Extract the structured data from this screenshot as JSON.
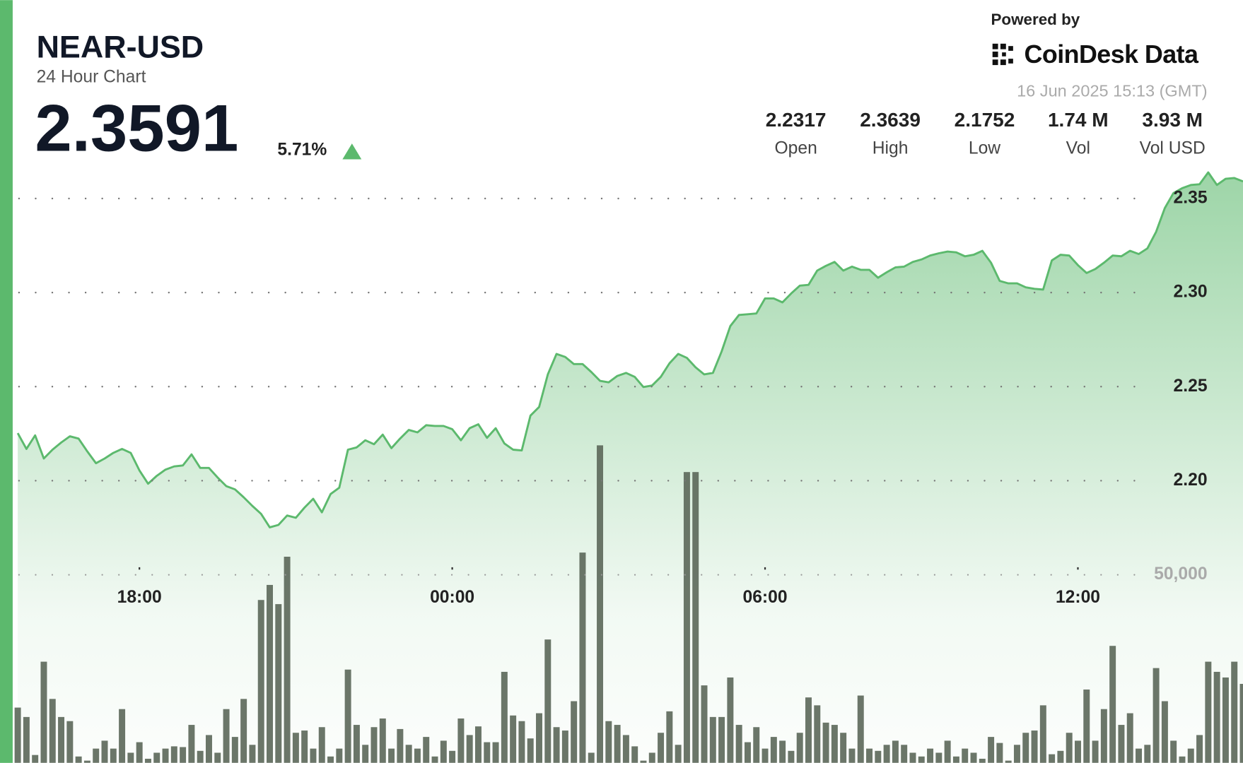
{
  "chart_data": {
    "type": "line",
    "title": "NEAR-USD",
    "subtitle": "24 Hour Chart",
    "price": "2.3591",
    "change": "5.71%",
    "powered_by": "Powered by",
    "brand": "CoinDesk Data",
    "timestamp": "16 Jun 2025 15:13 (GMT)",
    "stats": [
      {
        "value": "2.2317",
        "label": "Open"
      },
      {
        "value": "2.3639",
        "label": "High"
      },
      {
        "value": "2.1752",
        "label": "Low"
      },
      {
        "value": "1.74 M",
        "label": "Vol"
      },
      {
        "value": "3.93 M",
        "label": "Vol USD"
      }
    ],
    "accent_color": "#5cb96d",
    "x": [
      940,
      950,
      960,
      970,
      980,
      990,
      1000,
      1010,
      1020,
      1030,
      1040,
      1050,
      1060,
      1070,
      1080,
      1090,
      1100,
      1110,
      1120,
      1130,
      1140,
      1150,
      1160,
      1170,
      1180,
      1190,
      1200,
      1210,
      1220,
      1230,
      1240,
      1250,
      1260,
      1270,
      1280,
      1290,
      1300,
      1310,
      1320,
      1330,
      1340,
      1350,
      1360,
      1370,
      1380,
      1390,
      1400,
      1410,
      1420,
      1430,
      1440,
      1450,
      1460,
      1470,
      1480,
      1490,
      1500,
      1510,
      1520,
      1530,
      1540,
      1550,
      1560,
      1570,
      1580,
      1590,
      1600,
      1610,
      1620,
      1630,
      1640,
      1650,
      1660,
      1670,
      1680,
      1690,
      1700,
      1710,
      1720,
      1730,
      1740,
      1750,
      1760,
      1770,
      1780,
      1790,
      1800,
      1810,
      1820,
      1830,
      1840,
      1850,
      1860,
      1870,
      1880,
      1890,
      1900,
      1910,
      1920,
      1930,
      1940,
      1950,
      1960,
      1970,
      1980,
      1990,
      2000,
      2010,
      2020,
      2030,
      2040,
      2050,
      2060,
      2070,
      2080,
      2090,
      2100,
      2110,
      2120,
      2130,
      2140,
      2150,
      2160,
      2170,
      2180,
      2190,
      2200,
      2210,
      2220,
      2230,
      2240,
      2250,
      2260,
      2270,
      2280,
      2290,
      2300,
      2310,
      2320,
      2330,
      2340,
      2350
    ],
    "xlim": [
      936,
      2350
    ],
    "xticks": [
      {
        "value": 1080,
        "label": "18:00"
      },
      {
        "value": 1440,
        "label": "00:00"
      },
      {
        "value": 1800,
        "label": "06:00"
      },
      {
        "value": 2160,
        "label": "12:00"
      }
    ],
    "ylim": [
      2.05,
      2.37
    ],
    "yticks": [
      {
        "value": 2.2,
        "label": "2.20"
      },
      2.25,
      {
        "value": 2.3,
        "label": "2.30"
      },
      2.35
    ],
    "y2lim": [
      0,
      160000
    ],
    "y2ticks": [
      {
        "value": 50000,
        "label": "50,000"
      }
    ],
    "grid": true,
    "series": [
      {
        "type": "line",
        "color": "#5cb96d",
        "values": [
          2.2253,
          2.2169,
          2.2241,
          2.2118,
          2.2165,
          2.2203,
          2.2236,
          2.2224,
          2.2156,
          2.2093,
          2.2118,
          2.2148,
          2.2169,
          2.2148,
          2.2055,
          2.1984,
          2.2026,
          2.2059,
          2.2076,
          2.2081,
          2.214,
          2.2068,
          2.2068,
          2.2017,
          2.1971,
          2.1954,
          2.1912,
          2.1866,
          2.1824,
          2.1752,
          2.1765,
          2.1815,
          2.1803,
          2.1857,
          2.1904,
          2.1832,
          2.1929,
          2.1963,
          2.2165,
          2.2177,
          2.2215,
          2.2194,
          2.2245,
          2.2173,
          2.2224,
          2.227,
          2.2257,
          2.2295,
          2.2291,
          2.2291,
          2.2274,
          2.2215,
          2.2279,
          2.23,
          2.2228,
          2.2279,
          2.2198,
          2.2165,
          2.2161,
          2.2346,
          2.2392,
          2.2565,
          2.2674,
          2.2658,
          2.262,
          2.262,
          2.2578,
          2.2531,
          2.2523,
          2.2557,
          2.2573,
          2.2552,
          2.2498,
          2.2506,
          2.2552,
          2.2624,
          2.2674,
          2.2653,
          2.2603,
          2.2565,
          2.2573,
          2.2687,
          2.2822,
          2.2881,
          2.2885,
          2.2889,
          2.2969,
          2.2969,
          2.2948,
          2.2995,
          2.3037,
          2.3041,
          2.3117,
          2.3142,
          2.3163,
          2.3117,
          2.3138,
          2.3121,
          2.3121,
          2.3079,
          2.3108,
          2.3134,
          2.3138,
          2.3163,
          2.3176,
          2.3197,
          2.3209,
          2.3218,
          2.3214,
          2.3193,
          2.3201,
          2.3222,
          2.3159,
          2.3062,
          2.3049,
          2.3049,
          2.3028,
          2.302,
          2.3016,
          2.3171,
          2.3201,
          2.3197,
          2.3146,
          2.3104,
          2.3125,
          2.3159,
          2.3197,
          2.3193,
          2.3222,
          2.3205,
          2.3235,
          2.3323,
          2.3449,
          2.3529,
          2.3555,
          2.3572,
          2.3576,
          2.3639,
          2.3572,
          2.3605,
          2.3609,
          2.3591
        ]
      },
      {
        "type": "bar",
        "axis": "y2",
        "color": "#5b6759",
        "values": [
          14700,
          12200,
          2100,
          26900,
          17000,
          12200,
          11100,
          1700,
          600,
          3800,
          5900,
          3800,
          14300,
          2700,
          5500,
          1100,
          2700,
          3800,
          4400,
          4200,
          10100,
          3200,
          7400,
          2700,
          14300,
          6900,
          17000,
          4800,
          43300,
          47300,
          42200,
          54800,
          8000,
          8600,
          3800,
          9500,
          1700,
          3800,
          24800,
          10100,
          4800,
          9500,
          11800,
          3800,
          9000,
          4800,
          3800,
          6900,
          1700,
          5900,
          3200,
          11800,
          7400,
          9700,
          5500,
          5500,
          24200,
          12600,
          11100,
          6500,
          13200,
          32800,
          9500,
          8600,
          16400,
          55900,
          2700,
          84400,
          11100,
          10100,
          7400,
          4400,
          600,
          2700,
          8000,
          13700,
          4800,
          77300,
          77300,
          20600,
          12200,
          12200,
          22700,
          10100,
          5500,
          9500,
          3800,
          6900,
          5900,
          3200,
          8000,
          17400,
          15300,
          10700,
          10100,
          8000,
          3800,
          17900,
          3800,
          3200,
          4800,
          5900,
          4800,
          2700,
          1700,
          3800,
          2700,
          5900,
          1700,
          3800,
          2700,
          1100,
          6900,
          5300,
          600,
          4800,
          8000,
          8600,
          15300,
          2300,
          3200,
          8000,
          5900,
          19500,
          5900,
          14300,
          31100,
          10100,
          13200,
          3800,
          4800,
          25200,
          16400,
          5900,
          1700,
          3800,
          7400,
          26900,
          24200,
          22700,
          26900,
          21000
        ]
      }
    ]
  }
}
